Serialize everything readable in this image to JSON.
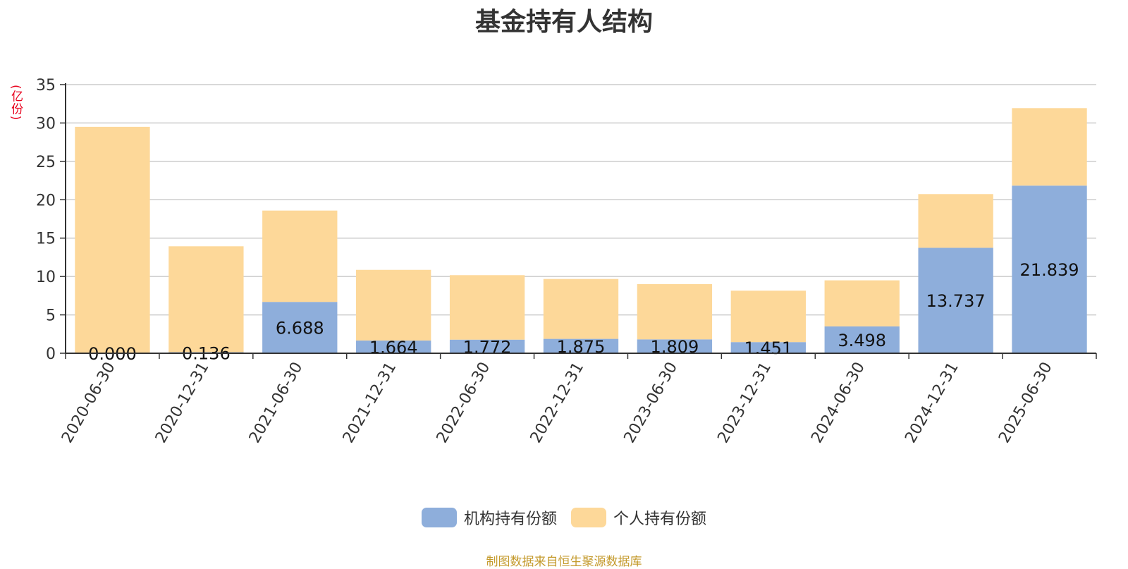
{
  "title": "基金持有人结构",
  "unit_label": "(亿份)",
  "footer": "制图数据来自恒生聚源数据库",
  "legend": [
    {
      "label": "机构持有份额",
      "color": "#8eaedb"
    },
    {
      "label": "个人持有份额",
      "color": "#fdd899"
    }
  ],
  "chart_data": {
    "type": "bar",
    "stacked": true,
    "categories": [
      "2020-06-30",
      "2020-12-31",
      "2021-06-30",
      "2021-12-31",
      "2022-06-30",
      "2022-12-31",
      "2023-06-30",
      "2023-12-31",
      "2024-06-30",
      "2024-12-31",
      "2025-06-30"
    ],
    "series": [
      {
        "name": "机构持有份额",
        "color": "#8eaedb",
        "values": [
          0.0,
          0.136,
          6.688,
          1.664,
          1.772,
          1.875,
          1.809,
          1.451,
          3.498,
          13.737,
          21.839
        ],
        "labels": [
          "0.000",
          "0.136",
          "6.688",
          "1.664",
          "1.772",
          "1.875",
          "1.809",
          "1.451",
          "3.498",
          "13.737",
          "21.839"
        ]
      },
      {
        "name": "个人持有份额",
        "color": "#fdd899",
        "values": [
          29.5,
          13.8,
          11.9,
          9.2,
          8.4,
          7.8,
          7.2,
          6.7,
          6.0,
          7.0,
          10.1
        ]
      }
    ],
    "yticks": [
      0,
      5,
      10,
      15,
      20,
      25,
      30,
      35
    ],
    "ylim": [
      0,
      35
    ],
    "grid": true,
    "legend_position": "bottom"
  }
}
